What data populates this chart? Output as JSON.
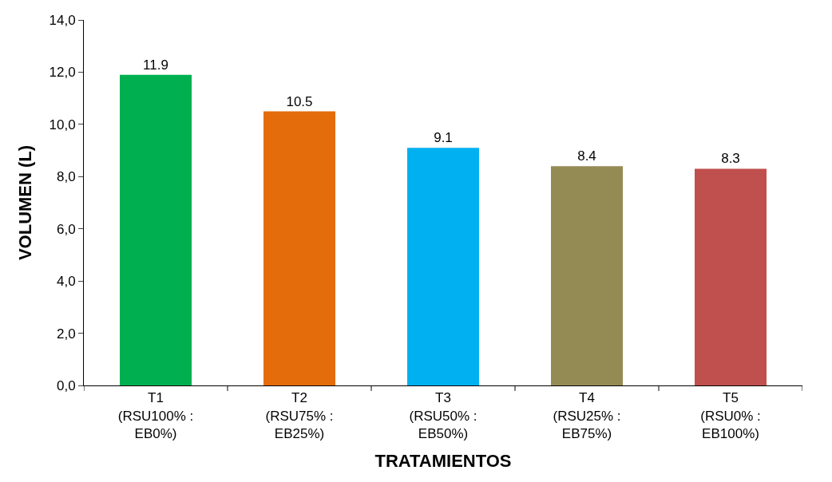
{
  "chart_data": {
    "type": "bar",
    "xlabel": "TRATAMIENTOS",
    "ylabel": "VOLUMEN (L)",
    "categories": [
      "T1\n(RSU100% :\nEB0%)",
      "T2\n(RSU75% :\nEB25%)",
      "T3\n(RSU50% :\nEB50%)",
      "T4\n(RSU25% :\nEB75%)",
      "T5\n(RSU0% :\nEB100%)"
    ],
    "values": [
      11.9,
      10.5,
      9.1,
      8.4,
      8.3
    ],
    "colors": [
      "#00b050",
      "#e46c0a",
      "#00b0f0",
      "#948a54",
      "#c0504d"
    ],
    "ylim": [
      0,
      14
    ],
    "yticks": [
      {
        "value": 0,
        "label": "0,0"
      },
      {
        "value": 2,
        "label": "2,0"
      },
      {
        "value": 4,
        "label": "4,0"
      },
      {
        "value": 6,
        "label": "6,0"
      },
      {
        "value": 8,
        "label": "8,0"
      },
      {
        "value": 10,
        "label": "10,0"
      },
      {
        "value": 12,
        "label": "12,0"
      },
      {
        "value": 14,
        "label": "14,0"
      }
    ],
    "data_labels": true
  }
}
